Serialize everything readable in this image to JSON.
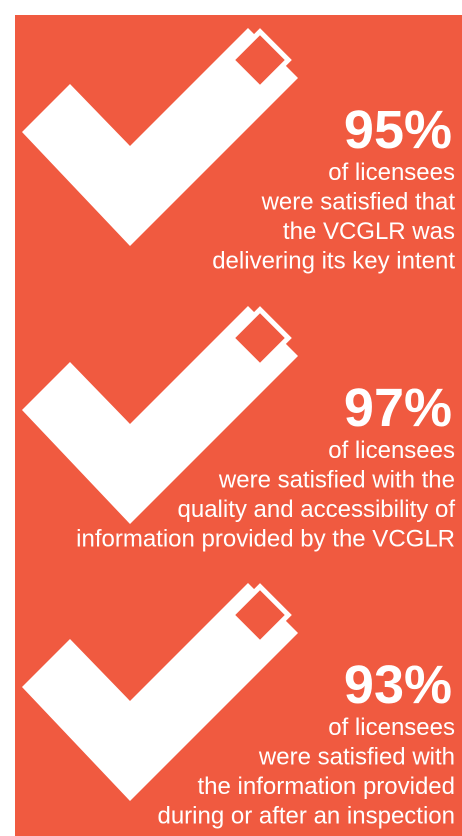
{
  "items": [
    {
      "percent": "95%",
      "lines": [
        "of licensees",
        "were satisfied that",
        "the VCGLR was",
        "delivering its key intent"
      ]
    },
    {
      "percent": "97%",
      "lines": [
        "of licensees",
        "were satisfied with the",
        "quality and accessibility of",
        "information provided by the VCGLR"
      ]
    },
    {
      "percent": "93%",
      "lines": [
        "of licensees",
        "were satisfied with",
        "the information provided",
        "during or after an inspection"
      ]
    }
  ]
}
